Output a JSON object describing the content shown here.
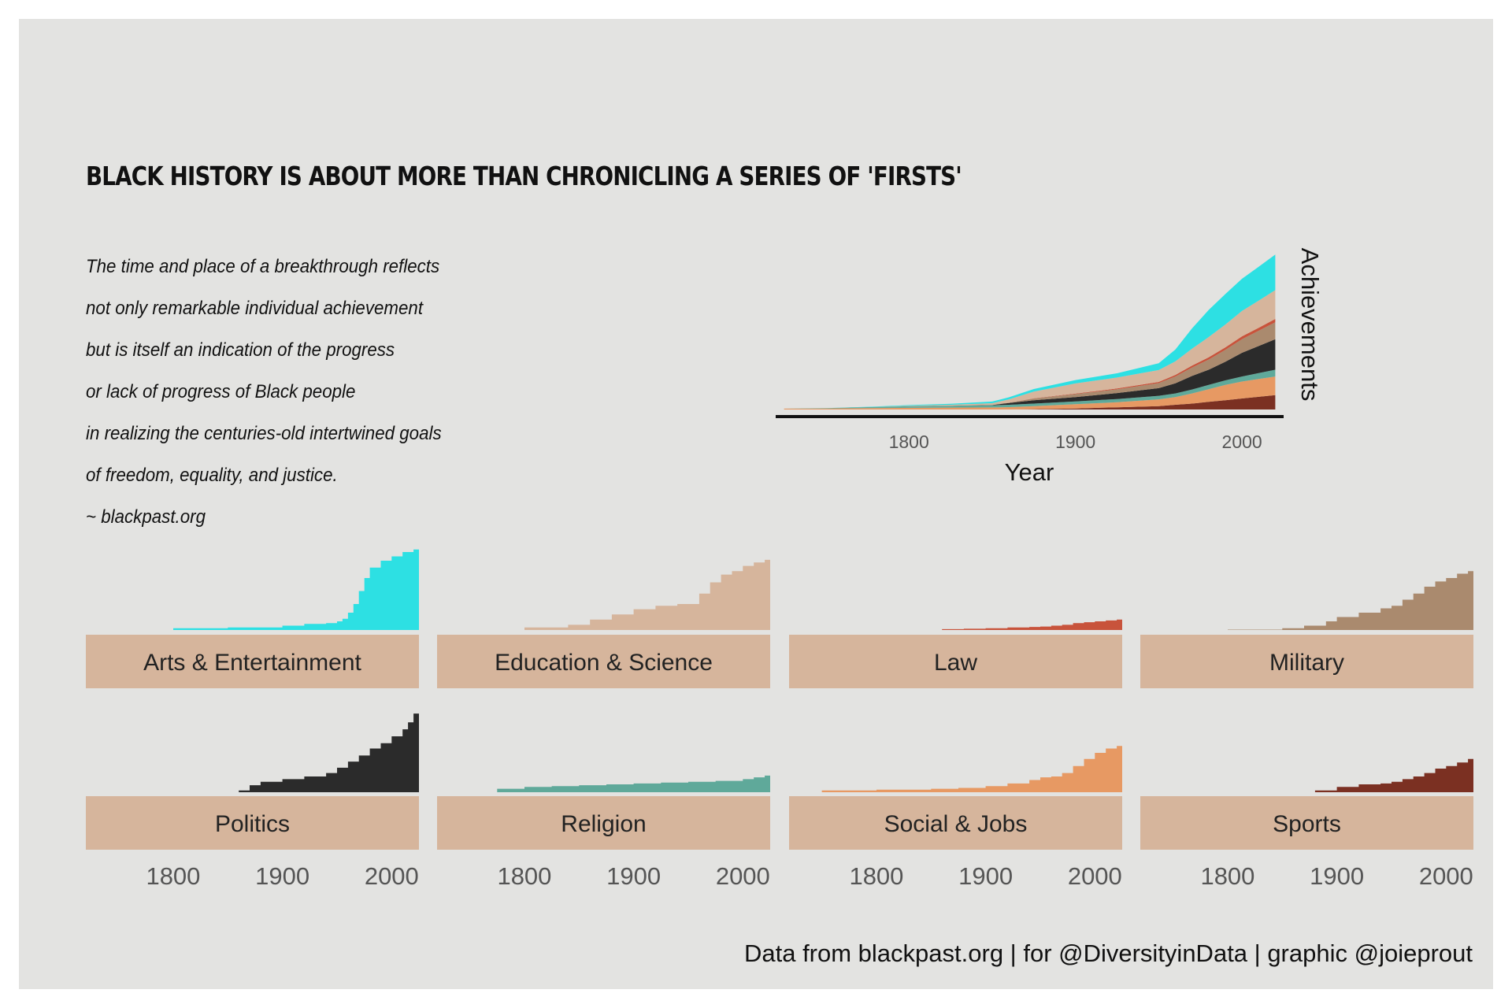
{
  "title": "BLACK HISTORY IS ABOUT MORE THAN CHRONICLING A SERIES OF 'FIRSTS'",
  "subtitle_lines": [
    "The time and place of a breakthrough reflects",
    "not only remarkable individual achievement",
    "but is itself an indication of the progress",
    "or lack of progress of Black people",
    "in realizing the centuries-old intertwined goals",
    "of freedom, equality, and justice.",
    "~ blackpast.org"
  ],
  "caption": "Data from blackpast.org | for @DiversityinData | graphic @joieprout",
  "colors": {
    "background": "#e3e3e1",
    "strip": "#d6b59c",
    "axis": "#111111",
    "tick_text": "#555555"
  },
  "chart_data": [
    {
      "type": "area",
      "stacked": true,
      "xlabel": "Year",
      "ylabel": "Achievements",
      "xlim": [
        1720,
        2025
      ],
      "ylim": [
        0,
        1
      ],
      "x_ticks": [
        1800,
        1900,
        2000
      ],
      "y_ticks": [],
      "grid": false,
      "legend": "none",
      "x": [
        1725,
        1750,
        1775,
        1800,
        1825,
        1850,
        1860,
        1875,
        1900,
        1925,
        1950,
        1960,
        1970,
        1980,
        1990,
        2000,
        2010,
        2020
      ],
      "series": [
        {
          "name": "Sports",
          "color": "#7b3022",
          "values": [
            0,
            0,
            0,
            0,
            0,
            0,
            0,
            0.002,
            0.006,
            0.013,
            0.02,
            0.028,
            0.035,
            0.045,
            0.055,
            0.065,
            0.075,
            0.085
          ]
        },
        {
          "name": "Social & Jobs",
          "color": "#e79963",
          "values": [
            0.005,
            0.006,
            0.008,
            0.01,
            0.011,
            0.012,
            0.014,
            0.018,
            0.025,
            0.03,
            0.04,
            0.045,
            0.06,
            0.075,
            0.09,
            0.1,
            0.105,
            0.11
          ]
        },
        {
          "name": "Religion",
          "color": "#5fa99a",
          "values": [
            0,
            0.002,
            0.006,
            0.009,
            0.011,
            0.013,
            0.014,
            0.015,
            0.017,
            0.019,
            0.021,
            0.022,
            0.023,
            0.025,
            0.027,
            0.03,
            0.035,
            0.04
          ]
        },
        {
          "name": "Politics",
          "color": "#2b2b2b",
          "values": [
            0,
            0,
            0,
            0,
            0,
            0.002,
            0.01,
            0.02,
            0.025,
            0.035,
            0.045,
            0.06,
            0.08,
            0.09,
            0.11,
            0.14,
            0.16,
            0.18
          ]
        },
        {
          "name": "Military",
          "color": "#aa8a6e",
          "values": [
            0,
            0,
            0,
            0,
            0,
            0,
            0.002,
            0.01,
            0.018,
            0.022,
            0.03,
            0.04,
            0.05,
            0.06,
            0.07,
            0.08,
            0.09,
            0.1
          ]
        },
        {
          "name": "Law",
          "color": "#c8533b",
          "values": [
            0,
            0,
            0,
            0,
            0,
            0,
            0,
            0.001,
            0.003,
            0.005,
            0.007,
            0.009,
            0.011,
            0.013,
            0.015,
            0.017,
            0.018,
            0.02
          ]
        },
        {
          "name": "Education & Science",
          "color": "#d6b59c",
          "values": [
            0,
            0,
            0,
            0.003,
            0.006,
            0.01,
            0.02,
            0.04,
            0.06,
            0.065,
            0.07,
            0.08,
            0.1,
            0.12,
            0.135,
            0.15,
            0.16,
            0.17
          ]
        },
        {
          "name": "Arts & Entertainment",
          "color": "#2de0e3",
          "values": [
            0,
            0,
            0.002,
            0.004,
            0.006,
            0.01,
            0.012,
            0.015,
            0.02,
            0.025,
            0.04,
            0.07,
            0.12,
            0.16,
            0.18,
            0.19,
            0.2,
            0.21
          ]
        }
      ]
    },
    {
      "type": "area",
      "facets": true,
      "facet_columns": 4,
      "xlim": [
        1720,
        2025
      ],
      "x_ticks": [
        1800,
        1900,
        2000
      ],
      "y_scale": "free",
      "grid": false,
      "panels": [
        {
          "label": "Arts & Entertainment",
          "color": "#2de0e3",
          "ymax": 1,
          "x": [
            1750,
            1800,
            1850,
            1900,
            1920,
            1940,
            1950,
            1955,
            1960,
            1965,
            1970,
            1975,
            1980,
            1990,
            2000,
            2010,
            2020,
            2025
          ],
          "values": [
            0,
            0.02,
            0.03,
            0.05,
            0.07,
            0.08,
            0.1,
            0.13,
            0.2,
            0.3,
            0.45,
            0.6,
            0.72,
            0.8,
            0.85,
            0.9,
            0.93,
            1
          ]
        },
        {
          "label": "Education & Science",
          "color": "#d6b59c",
          "ymax": 1,
          "x": [
            1750,
            1800,
            1840,
            1860,
            1880,
            1900,
            1920,
            1940,
            1950,
            1960,
            1970,
            1980,
            1990,
            2000,
            2010,
            2020,
            2025
          ],
          "values": [
            0,
            0.03,
            0.06,
            0.12,
            0.18,
            0.24,
            0.28,
            0.3,
            0.3,
            0.42,
            0.55,
            0.64,
            0.68,
            0.74,
            0.78,
            0.81,
            0.82
          ]
        },
        {
          "label": "Law",
          "color": "#c8533b",
          "ymax": 1,
          "x": [
            1840,
            1860,
            1880,
            1900,
            1920,
            1940,
            1950,
            1960,
            1970,
            1980,
            1990,
            2000,
            2010,
            2020,
            2025
          ],
          "values": [
            0,
            0.01,
            0.015,
            0.02,
            0.03,
            0.035,
            0.04,
            0.05,
            0.06,
            0.08,
            0.09,
            0.1,
            0.11,
            0.12,
            0.12
          ]
        },
        {
          "label": "Military",
          "color": "#aa8a6e",
          "ymax": 1,
          "x": [
            1750,
            1800,
            1850,
            1870,
            1890,
            1900,
            1920,
            1940,
            1950,
            1960,
            1970,
            1980,
            1990,
            2000,
            2010,
            2020,
            2025
          ],
          "values": [
            0,
            0.005,
            0.02,
            0.05,
            0.1,
            0.15,
            0.2,
            0.25,
            0.28,
            0.35,
            0.42,
            0.5,
            0.56,
            0.6,
            0.65,
            0.68,
            0.7
          ]
        },
        {
          "label": "Politics",
          "color": "#2b2b2b",
          "ymax": 1,
          "x": [
            1850,
            1860,
            1870,
            1880,
            1900,
            1920,
            1940,
            1950,
            1960,
            1970,
            1980,
            1990,
            2000,
            2010,
            2015,
            2020,
            2025
          ],
          "values": [
            0,
            0.02,
            0.08,
            0.12,
            0.15,
            0.18,
            0.22,
            0.28,
            0.35,
            0.42,
            0.5,
            0.56,
            0.64,
            0.72,
            0.8,
            0.9,
            0.95
          ]
        },
        {
          "label": "Religion",
          "color": "#5fa99a",
          "ymax": 1,
          "x": [
            1750,
            1775,
            1800,
            1825,
            1850,
            1875,
            1900,
            1925,
            1950,
            1975,
            2000,
            2010,
            2020,
            2025
          ],
          "values": [
            0,
            0.04,
            0.06,
            0.07,
            0.08,
            0.09,
            0.1,
            0.11,
            0.12,
            0.13,
            0.15,
            0.17,
            0.19,
            0.2
          ]
        },
        {
          "label": "Social & Jobs",
          "color": "#e79963",
          "ymax": 1,
          "x": [
            1735,
            1750,
            1800,
            1850,
            1875,
            1900,
            1920,
            1940,
            1950,
            1960,
            1970,
            1980,
            1990,
            2000,
            2010,
            2020,
            2025
          ],
          "values": [
            0,
            0.02,
            0.03,
            0.04,
            0.05,
            0.07,
            0.1,
            0.14,
            0.17,
            0.18,
            0.22,
            0.3,
            0.38,
            0.45,
            0.5,
            0.53,
            0.55
          ]
        },
        {
          "label": "Sports",
          "color": "#7b3022",
          "ymax": 1,
          "x": [
            1870,
            1880,
            1900,
            1920,
            1940,
            1950,
            1960,
            1970,
            1980,
            1990,
            2000,
            2010,
            2020,
            2025
          ],
          "values": [
            0,
            0.02,
            0.06,
            0.09,
            0.1,
            0.12,
            0.15,
            0.18,
            0.22,
            0.27,
            0.3,
            0.34,
            0.38,
            0.4
          ]
        }
      ]
    }
  ]
}
